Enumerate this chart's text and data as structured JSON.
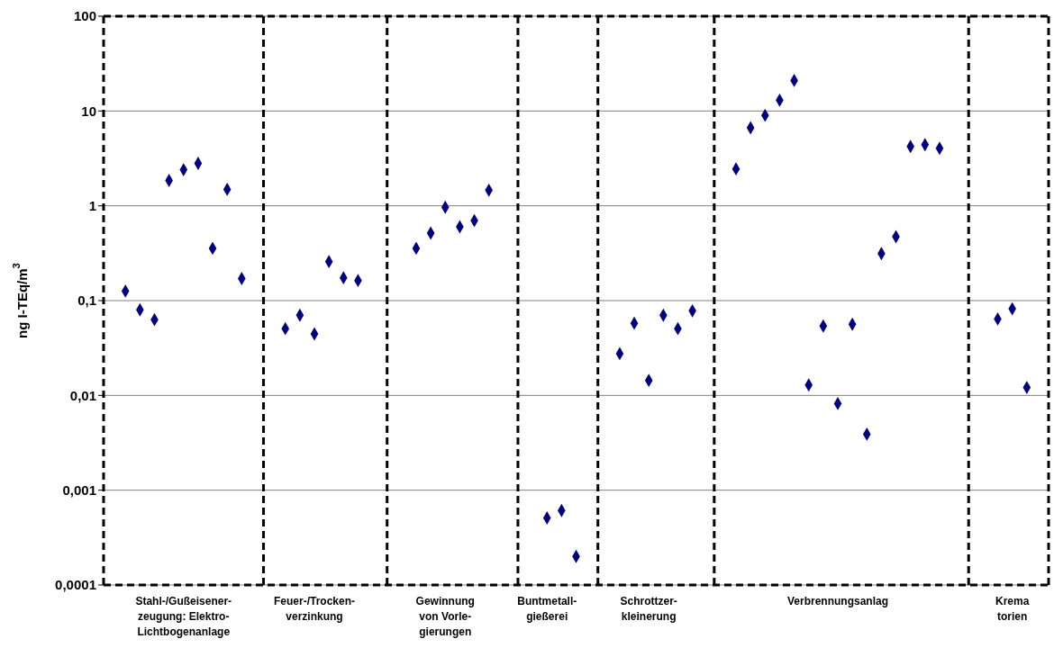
{
  "chart_data": {
    "type": "scatter",
    "ylabel": "ng I-TEq/m$^{3}$",
    "categories": [
      null,
      null,
      null,
      null,
      null,
      "Stahl-/Gußeisener-\nzeugung: Elektro-\nLichtbogenanlage",
      null,
      null,
      null,
      null,
      null,
      null,
      null,
      null,
      "Feuer-/Trocken-\nverzinkung",
      null,
      null,
      null,
      null,
      null,
      null,
      null,
      null,
      "Gewinnung\nvon Vorle-\ngierungen",
      null,
      null,
      null,
      null,
      null,
      null,
      "Buntmetall-\ngießerei",
      null,
      null,
      null,
      null,
      null,
      null,
      "Schrottzer-\nkleinerung",
      null,
      null,
      null,
      null,
      null,
      null,
      null,
      null,
      null,
      null,
      null,
      null,
      "Verbrennungsanlag",
      null,
      null,
      null,
      null,
      null,
      null,
      null,
      null,
      null,
      null,
      null,
      "Krema\ntorien",
      null,
      null
    ],
    "series": [
      {
        "color": "#000080",
        "values": [
          null,
          0.126,
          0.08,
          0.063,
          1.85,
          2.4,
          2.8,
          0.356,
          1.49,
          0.171,
          null,
          null,
          0.0506,
          0.07,
          0.0445,
          0.258,
          0.174,
          0.163,
          null,
          null,
          null,
          0.356,
          0.515,
          0.966,
          0.6,
          0.698,
          1.46,
          null,
          null,
          null,
          0.00051,
          0.00061,
          0.0002,
          null,
          null,
          0.0276,
          0.0577,
          0.0144,
          0.07,
          0.0506,
          0.078,
          null,
          null,
          2.45,
          6.65,
          9.0,
          13.0,
          21.0,
          0.0129,
          0.054,
          0.0082,
          0.0564,
          0.0039,
          0.313,
          0.472,
          4.22,
          4.41,
          4.04,
          null,
          null,
          null,
          0.064,
          0.082,
          0.0121,
          null
        ]
      }
    ],
    "log": "y",
    "ylim": [
      0.0001,
      100
    ],
    "yticks": [
      {
        "value": 0.0001,
        "label": "0,0001"
      },
      {
        "value": 0.001,
        "label": "0,001"
      },
      {
        "value": 0.01,
        "label": "0,01"
      },
      {
        "value": 0.1,
        "label": "0,1"
      },
      {
        "value": 1,
        "label": "1"
      },
      {
        "value": 10,
        "label": "10"
      },
      {
        "value": 100,
        "label": "100"
      }
    ],
    "grid": true,
    "marker": "diamond",
    "legend": false
  }
}
